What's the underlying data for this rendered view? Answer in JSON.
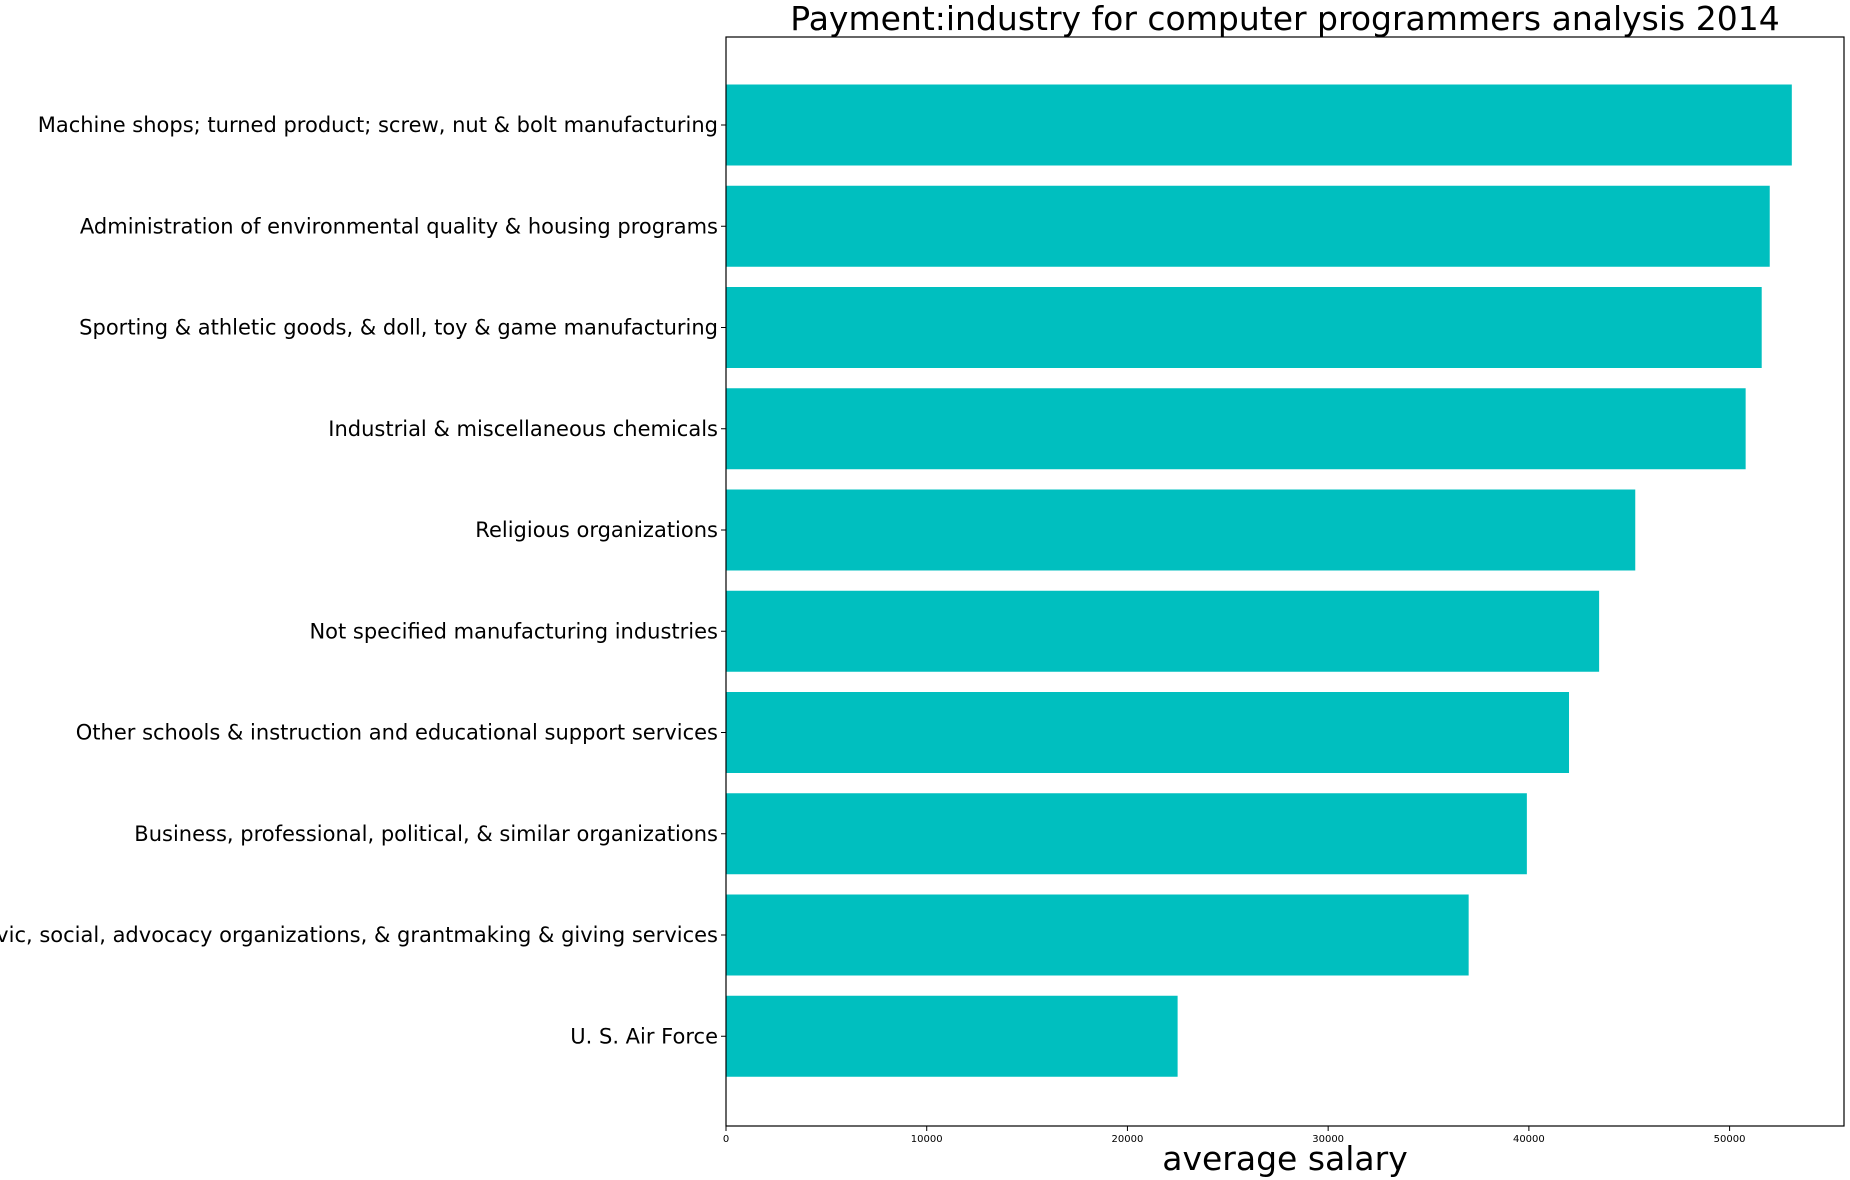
{
  "chart_data": {
    "type": "bar",
    "orientation": "horizontal",
    "title": "Payment:industry for computer programmers analysis 2014",
    "xlabel": "average salary",
    "ylabel": "",
    "categories": [
      "Machine shops; turned product; screw, nut & bolt manufacturing",
      "Administration of environmental quality & housing programs",
      "Sporting & athletic goods, & doll, toy & game manufacturing",
      "Industrial & miscellaneous chemicals",
      "Religious organizations",
      "Not specified manufacturing industries",
      "Other schools & instruction and educational support services",
      "Business, professional, political, & similar organizations",
      "Civic, social, advocacy organizations, & grantmaking & giving services",
      "U. S. Air Force"
    ],
    "values": [
      53100,
      52000,
      51600,
      50800,
      45300,
      43500,
      42000,
      39900,
      37000,
      22500
    ],
    "xlim": [
      0,
      55700
    ],
    "xticks": [
      0,
      10000,
      20000,
      30000,
      40000,
      50000
    ],
    "xtick_labels": [
      "0",
      "10000",
      "20000",
      "30000",
      "40000",
      "50000"
    ],
    "bar_color": "#00bfbf",
    "grid": false,
    "legend": "none"
  }
}
